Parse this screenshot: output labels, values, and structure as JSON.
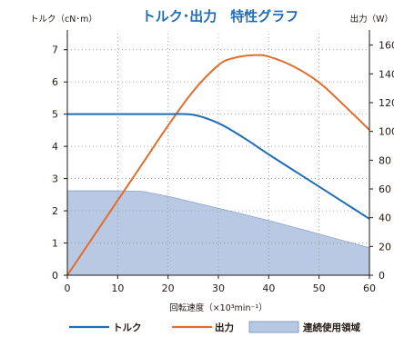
{
  "chart_data": {
    "type": "line",
    "title": "トルク･出力　特性グラフ",
    "xlabel": "回転速度（×10³min⁻¹）",
    "ylabel_left": "トルク（cN･m）",
    "ylabel_right": "出力（W）",
    "xlim": [
      0,
      60
    ],
    "ylim_left": [
      0,
      7.5
    ],
    "ylim_right": [
      0,
      168
    ],
    "x_ticks": [
      "0",
      "10",
      "20",
      "30",
      "40",
      "50",
      "60"
    ],
    "y_left_ticks": [
      "0",
      "1",
      "2",
      "3",
      "4",
      "5",
      "6",
      "7"
    ],
    "y_right_ticks": [
      "0",
      "20",
      "40",
      "60",
      "80",
      "100",
      "120",
      "140",
      "160"
    ],
    "grid": true,
    "legend_position": "bottom",
    "series": [
      {
        "name": "トルク",
        "axis": "left",
        "color": "#1e6db5",
        "x": [
          0,
          5,
          10,
          15,
          20,
          25,
          30,
          35,
          40,
          45,
          50,
          55,
          60
        ],
        "y": [
          5.0,
          5.0,
          5.0,
          5.0,
          5.0,
          4.98,
          4.72,
          4.27,
          3.75,
          3.25,
          2.75,
          2.25,
          1.75
        ]
      },
      {
        "name": "出力",
        "axis": "right",
        "color": "#e36c2c",
        "x": [
          0,
          5,
          10,
          15,
          20,
          25,
          30,
          33,
          37,
          40,
          45,
          50,
          55,
          60
        ],
        "y": [
          0,
          26,
          52,
          78,
          104,
          128,
          146,
          151,
          153,
          152,
          145,
          134,
          118,
          101
        ]
      },
      {
        "name": "連続使用領域",
        "axis": "left",
        "type": "area",
        "color": "#b9c9e3",
        "x": [
          0,
          10,
          15,
          20,
          30,
          40,
          50,
          60
        ],
        "y": [
          2.62,
          2.62,
          2.6,
          2.45,
          2.08,
          1.7,
          1.28,
          0.85
        ]
      }
    ]
  }
}
